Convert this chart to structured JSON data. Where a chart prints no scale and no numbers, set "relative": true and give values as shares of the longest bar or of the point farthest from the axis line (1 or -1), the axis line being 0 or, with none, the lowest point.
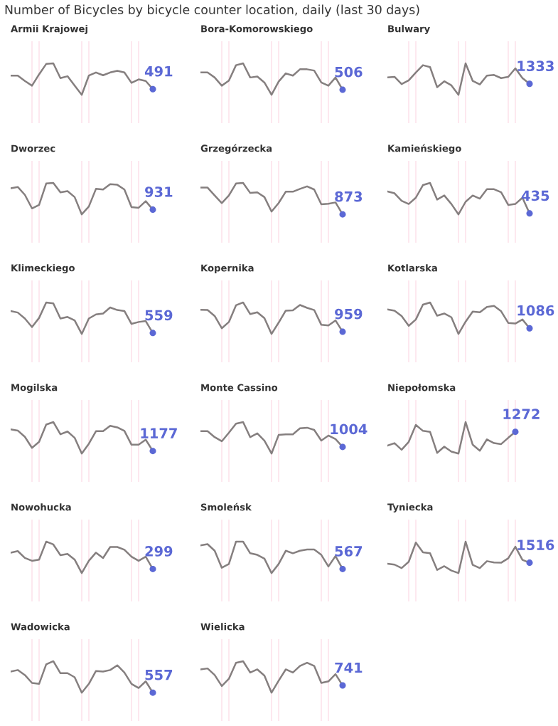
{
  "chart_data": [
    {
      "type": "other",
      "title": "Number of Bicycles by bicycle counter location, daily (last 30 days)"
    },
    {
      "type": "line",
      "title": "Armii Krajowej",
      "relative": true,
      "grid": "x",
      "annotations": [
        {
          "text": "491",
          "y": 0.18
        }
      ],
      "categories": [
        null,
        null,
        null,
        null,
        null,
        null,
        null,
        null,
        null,
        null,
        null,
        null,
        null,
        null,
        null,
        null,
        null,
        null,
        null,
        null,
        null
      ],
      "series": [
        {
          "type": "line",
          "color": "#857f7f",
          "values": [
            0.61,
            0.61,
            0.44,
            0.29,
            0.65,
            0.98,
            1,
            0.53,
            0.59,
            0.29,
            0,
            0.61,
            0.71,
            0.62,
            0.71,
            0.76,
            0.71,
            0.38,
            0.49,
            0.44,
            0.18
          ]
        }
      ]
    },
    {
      "type": "line",
      "title": "Bora-Komorowskiego",
      "relative": true,
      "grid": "x",
      "annotations": [
        {
          "text": "506",
          "y": 0.16
        }
      ],
      "categories": [
        null,
        null,
        null,
        null,
        null,
        null,
        null,
        null,
        null,
        null,
        null,
        null,
        null,
        null,
        null,
        null,
        null,
        null,
        null,
        null,
        null
      ],
      "series": [
        {
          "type": "line",
          "color": "#857f7f",
          "values": [
            0.71,
            0.71,
            0.55,
            0.29,
            0.45,
            0.94,
            1,
            0.55,
            0.58,
            0.39,
            0,
            0.42,
            0.68,
            0.61,
            0.81,
            0.81,
            0.77,
            0.39,
            0.29,
            0.55,
            0.16
          ]
        }
      ]
    },
    {
      "type": "line",
      "title": "Bulwary",
      "relative": true,
      "grid": "x",
      "annotations": [
        {
          "text": "1333",
          "y": 0.35
        }
      ],
      "categories": [
        null,
        null,
        null,
        null,
        null,
        null,
        null,
        null,
        null,
        null,
        null,
        null,
        null,
        null,
        null,
        null,
        null,
        null,
        null,
        null,
        null
      ],
      "series": [
        {
          "type": "line",
          "color": "#857f7f",
          "values": [
            0.55,
            0.57,
            0.34,
            0.46,
            0.71,
            0.94,
            0.88,
            0.24,
            0.43,
            0.3,
            0,
            1,
            0.44,
            0.33,
            0.61,
            0.63,
            0.53,
            0.57,
            0.84,
            0.53,
            0.35
          ]
        }
      ]
    },
    {
      "type": "line",
      "title": "Dworzec",
      "relative": true,
      "grid": "x",
      "annotations": [
        {
          "text": "931",
          "y": 0.15
        }
      ],
      "categories": [
        null,
        null,
        null,
        null,
        null,
        null,
        null,
        null,
        null,
        null,
        null,
        null,
        null,
        null,
        null,
        null,
        null,
        null,
        null,
        null,
        null
      ],
      "series": [
        {
          "type": "line",
          "color": "#857f7f",
          "values": [
            0.83,
            0.87,
            0.62,
            0.19,
            0.3,
            0.98,
            1,
            0.7,
            0.74,
            0.55,
            0,
            0.25,
            0.81,
            0.79,
            0.96,
            0.94,
            0.79,
            0.23,
            0.21,
            0.42,
            0.15
          ]
        }
      ]
    },
    {
      "type": "line",
      "title": "Grzegórzecka",
      "relative": true,
      "grid": "x",
      "annotations": [
        {
          "text": "873",
          "y": 0
        }
      ],
      "categories": [
        null,
        null,
        null,
        null,
        null,
        null,
        null,
        null,
        null,
        null,
        null,
        null,
        null,
        null,
        null,
        null,
        null,
        null,
        null,
        null,
        null
      ],
      "series": [
        {
          "type": "line",
          "color": "#857f7f",
          "values": [
            0.85,
            0.85,
            0.6,
            0.36,
            0.6,
            0.98,
            1,
            0.68,
            0.7,
            0.55,
            0.09,
            0.36,
            0.72,
            0.72,
            0.81,
            0.89,
            0.79,
            0.32,
            0.34,
            0.38,
            0
          ]
        }
      ]
    },
    {
      "type": "line",
      "title": "Kamieńskiego",
      "relative": true,
      "grid": "x",
      "annotations": [
        {
          "text": "435",
          "y": 0.03
        }
      ],
      "categories": [
        null,
        null,
        null,
        null,
        null,
        null,
        null,
        null,
        null,
        null,
        null,
        null,
        null,
        null,
        null,
        null,
        null,
        null,
        null,
        null,
        null
      ],
      "series": [
        {
          "type": "line",
          "color": "#857f7f",
          "values": [
            0.73,
            0.67,
            0.43,
            0.33,
            0.53,
            0.93,
            1,
            0.47,
            0.6,
            0.33,
            0,
            0.4,
            0.6,
            0.5,
            0.8,
            0.8,
            0.7,
            0.3,
            0.33,
            0.53,
            0.03
          ]
        }
      ]
    },
    {
      "type": "line",
      "title": "Klimeckiego",
      "relative": true,
      "grid": "x",
      "annotations": [
        {
          "text": "559",
          "y": 0.03
        }
      ],
      "categories": [
        null,
        null,
        null,
        null,
        null,
        null,
        null,
        null,
        null,
        null,
        null,
        null,
        null,
        null,
        null,
        null,
        null,
        null,
        null,
        null,
        null
      ],
      "series": [
        {
          "type": "line",
          "color": "#857f7f",
          "values": [
            0.73,
            0.68,
            0.49,
            0.22,
            0.51,
            1,
            0.97,
            0.49,
            0.54,
            0.43,
            0,
            0.49,
            0.62,
            0.65,
            0.84,
            0.76,
            0.73,
            0.32,
            0.38,
            0.41,
            0.03
          ]
        }
      ]
    },
    {
      "type": "line",
      "title": "Kopernika",
      "relative": true,
      "grid": "x",
      "annotations": [
        {
          "text": "959",
          "y": 0.07
        }
      ],
      "categories": [
        null,
        null,
        null,
        null,
        null,
        null,
        null,
        null,
        null,
        null,
        null,
        null,
        null,
        null,
        null,
        null,
        null,
        null,
        null,
        null,
        null
      ],
      "series": [
        {
          "type": "line",
          "color": "#857f7f",
          "values": [
            0.77,
            0.76,
            0.57,
            0.18,
            0.38,
            0.91,
            1,
            0.63,
            0.69,
            0.5,
            0,
            0.36,
            0.74,
            0.75,
            0.92,
            0.83,
            0.76,
            0.29,
            0.27,
            0.43,
            0.07
          ]
        }
      ]
    },
    {
      "type": "line",
      "title": "Kotlarska",
      "relative": true,
      "grid": "x",
      "annotations": [
        {
          "text": "1086",
          "y": 0.18
        }
      ],
      "categories": [
        null,
        null,
        null,
        null,
        null,
        null,
        null,
        null,
        null,
        null,
        null,
        null,
        null,
        null,
        null,
        null,
        null,
        null,
        null,
        null,
        null
      ],
      "series": [
        {
          "type": "line",
          "color": "#857f7f",
          "values": [
            0.78,
            0.74,
            0.57,
            0.26,
            0.46,
            0.93,
            1,
            0.58,
            0.65,
            0.53,
            0,
            0.39,
            0.71,
            0.69,
            0.86,
            0.89,
            0.72,
            0.35,
            0.33,
            0.46,
            0.18
          ]
        }
      ]
    },
    {
      "type": "line",
      "title": "Mogilska",
      "relative": true,
      "grid": "x",
      "annotations": [
        {
          "text": "1177",
          "y": 0.08
        }
      ],
      "categories": [
        null,
        null,
        null,
        null,
        null,
        null,
        null,
        null,
        null,
        null,
        null,
        null,
        null,
        null,
        null,
        null,
        null,
        null,
        null,
        null,
        null
      ],
      "series": [
        {
          "type": "line",
          "color": "#857f7f",
          "values": [
            0.77,
            0.73,
            0.53,
            0.18,
            0.37,
            0.92,
            1,
            0.61,
            0.7,
            0.5,
            0,
            0.31,
            0.71,
            0.71,
            0.88,
            0.83,
            0.72,
            0.28,
            0.28,
            0.44,
            0.08
          ]
        }
      ]
    },
    {
      "type": "line",
      "title": "Monte Cassino",
      "relative": true,
      "grid": "x",
      "annotations": [
        {
          "text": "1004",
          "y": 0.21
        }
      ],
      "categories": [
        null,
        null,
        null,
        null,
        null,
        null,
        null,
        null,
        null,
        null,
        null,
        null,
        null,
        null,
        null,
        null,
        null,
        null,
        null,
        null,
        null
      ],
      "series": [
        {
          "type": "line",
          "color": "#857f7f",
          "values": [
            0.71,
            0.71,
            0.52,
            0.39,
            0.66,
            0.95,
            1,
            0.52,
            0.64,
            0.41,
            0,
            0.59,
            0.61,
            0.61,
            0.8,
            0.82,
            0.75,
            0.41,
            0.57,
            0.46,
            0.21
          ]
        }
      ]
    },
    {
      "type": "line",
      "title": "Niepołomska",
      "relative": true,
      "grid": "x",
      "annotations": [
        {
          "text": "1272",
          "y": 0.69
        }
      ],
      "categories": [
        null,
        null,
        null,
        null,
        null,
        null,
        null,
        null,
        null,
        null,
        null,
        null,
        null,
        null,
        null,
        null,
        null,
        null,
        null,
        null,
        null
      ],
      "series": [
        {
          "type": "line",
          "color": "#857f7f",
          "values": [
            0.25,
            0.33,
            0.12,
            0.37,
            0.91,
            0.72,
            0.69,
            0.02,
            0.22,
            0.06,
            0,
            1,
            0.28,
            0.09,
            0.45,
            0.33,
            0.3,
            0.5,
            0.69,
            null,
            null
          ]
        }
      ]
    },
    {
      "type": "line",
      "title": "Nowohucka",
      "relative": true,
      "grid": "x",
      "annotations": [
        {
          "text": "299",
          "y": 0.13
        }
      ],
      "categories": [
        null,
        null,
        null,
        null,
        null,
        null,
        null,
        null,
        null,
        null,
        null,
        null,
        null,
        null,
        null,
        null,
        null,
        null,
        null,
        null,
        null
      ],
      "series": [
        {
          "type": "line",
          "color": "#857f7f",
          "values": [
            0.65,
            0.7,
            0.48,
            0.39,
            0.43,
            1,
            0.91,
            0.57,
            0.61,
            0.43,
            0,
            0.39,
            0.65,
            0.48,
            0.83,
            0.83,
            0.74,
            0.52,
            0.39,
            0.52,
            0.13
          ]
        }
      ]
    },
    {
      "type": "line",
      "title": "Smoleńsk",
      "relative": true,
      "grid": "x",
      "annotations": [
        {
          "text": "567",
          "y": 0.13
        }
      ],
      "categories": [
        null,
        null,
        null,
        null,
        null,
        null,
        null,
        null,
        null,
        null,
        null,
        null,
        null,
        null,
        null,
        null,
        null,
        null,
        null,
        null,
        null
      ],
      "series": [
        {
          "type": "line",
          "color": "#857f7f",
          "values": [
            0.88,
            0.92,
            0.71,
            0.17,
            0.29,
            1,
            1,
            0.63,
            0.58,
            0.46,
            0,
            0.29,
            0.71,
            0.63,
            0.71,
            0.75,
            0.75,
            0.58,
            0.21,
            0.54,
            0.13
          ]
        }
      ]
    },
    {
      "type": "line",
      "title": "Tyniecka",
      "relative": true,
      "grid": "x",
      "annotations": [
        {
          "text": "1516",
          "y": 0.33
        }
      ],
      "categories": [
        null,
        null,
        null,
        null,
        null,
        null,
        null,
        null,
        null,
        null,
        null,
        null,
        null,
        null,
        null,
        null,
        null,
        null,
        null,
        null,
        null
      ],
      "series": [
        {
          "type": "line",
          "color": "#857f7f",
          "values": [
            0.3,
            0.27,
            0.16,
            0.36,
            0.97,
            0.66,
            0.63,
            0.1,
            0.22,
            0.08,
            0,
            1,
            0.26,
            0.16,
            0.38,
            0.34,
            0.33,
            0.47,
            0.84,
            0.42,
            0.33
          ]
        }
      ]
    },
    {
      "type": "line",
      "title": "Wadowicka",
      "relative": true,
      "grid": "x",
      "annotations": [
        {
          "text": "557",
          "y": 0
        }
      ],
      "categories": [
        null,
        null,
        null,
        null,
        null,
        null,
        null,
        null,
        null,
        null,
        null,
        null,
        null,
        null,
        null,
        null,
        null,
        null,
        null,
        null,
        null
      ],
      "series": [
        {
          "type": "line",
          "color": "#857f7f",
          "values": [
            0.67,
            0.72,
            0.56,
            0.31,
            0.28,
            0.9,
            1,
            0.62,
            0.62,
            0.49,
            0,
            0.28,
            0.69,
            0.67,
            0.72,
            0.87,
            0.64,
            0.28,
            0.15,
            0.36,
            0
          ]
        }
      ]
    },
    {
      "type": "line",
      "title": "Wielicka",
      "relative": true,
      "grid": "x",
      "annotations": [
        {
          "text": "741",
          "y": 0.23
        }
      ],
      "categories": [
        null,
        null,
        null,
        null,
        null,
        null,
        null,
        null,
        null,
        null,
        null,
        null,
        null,
        null,
        null,
        null,
        null,
        null,
        null,
        null,
        null
      ],
      "series": [
        {
          "type": "line",
          "color": "#857f7f",
          "values": [
            0.74,
            0.77,
            0.56,
            0.21,
            0.44,
            0.95,
            1,
            0.64,
            0.74,
            0.54,
            0,
            0.38,
            0.74,
            0.64,
            0.85,
            0.95,
            0.85,
            0.31,
            0.36,
            0.59,
            0.23
          ]
        }
      ]
    }
  ]
}
